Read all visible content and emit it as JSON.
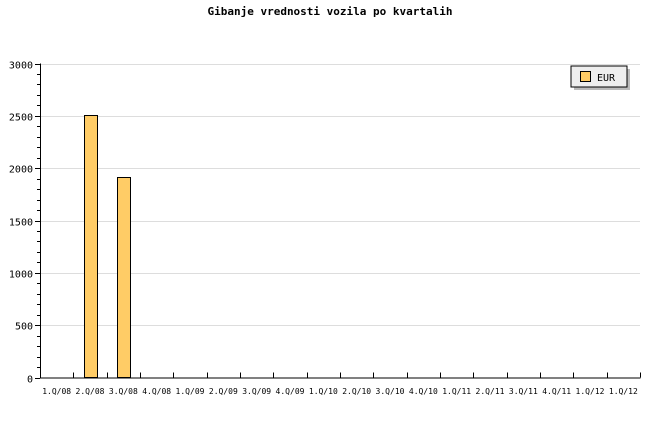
{
  "chart_data": {
    "type": "bar",
    "title": "Gibanje vrednosti vozila po kvartalih",
    "xlabel": "",
    "ylabel": "",
    "categories": [
      "1.Q/08",
      "2.Q/08",
      "3.Q/08",
      "4.Q/08",
      "1.Q/09",
      "2.Q/09",
      "3.Q/09",
      "4.Q/09",
      "1.Q/10",
      "2.Q/10",
      "3.Q/10",
      "4.Q/10",
      "1.Q/11",
      "2.Q/11",
      "3.Q/11",
      "4.Q/11",
      "1.Q/12",
      "1.Q/12"
    ],
    "series": [
      {
        "name": "EUR",
        "color": "#ffcc66",
        "values": [
          0,
          2510,
          1915,
          0,
          0,
          0,
          0,
          0,
          0,
          0,
          0,
          0,
          0,
          0,
          0,
          0,
          0,
          0
        ]
      }
    ],
    "ylim": [
      0,
      3000
    ],
    "yticks": [
      0,
      500,
      1000,
      1500,
      2000,
      2500,
      3000
    ],
    "grid": true,
    "legend": "top-right"
  }
}
